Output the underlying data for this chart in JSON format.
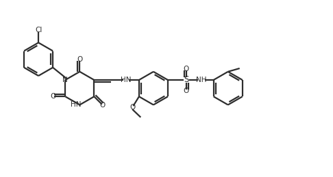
{
  "bg_color": "#ffffff",
  "line_color": "#2d2d2d",
  "bond_lw": 1.6,
  "figsize": [
    4.86,
    2.59
  ],
  "dpi": 100,
  "atoms": {
    "Cl": "Cl",
    "N": "N",
    "HN": "HN",
    "O": "O",
    "S": "S",
    "NH": "NH"
  }
}
